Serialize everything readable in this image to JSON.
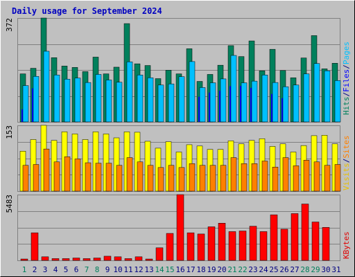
{
  "title": "Daily usage for September 2024",
  "chart_data": [
    {
      "type": "bar",
      "name": "hits-files-pages",
      "categories": [
        "1",
        "2",
        "3",
        "4",
        "5",
        "6",
        "7",
        "8",
        "9",
        "10",
        "11",
        "12",
        "13",
        "14",
        "15",
        "16",
        "17",
        "18",
        "19",
        "20",
        "21",
        "22",
        "23",
        "24",
        "25",
        "26",
        "27",
        "28",
        "29",
        "30",
        "31"
      ],
      "y_max_label": "372",
      "ylim": [
        0,
        372
      ],
      "legend": [
        {
          "text": "Hits",
          "color": "#00805c"
        },
        {
          "text": "/",
          "color": "#000080"
        },
        {
          "text": "Files",
          "color": "#0000ff"
        },
        {
          "text": "/",
          "color": "#000080"
        },
        {
          "text": "Pages",
          "color": "#00c0ff"
        }
      ],
      "series": [
        {
          "name": "Hits",
          "color": "#00805c",
          "values": [
            172,
            192,
            372,
            230,
            200,
            195,
            180,
            232,
            172,
            196,
            352,
            208,
            202,
            155,
            185,
            172,
            262,
            145,
            170,
            203,
            273,
            234,
            290,
            183,
            260,
            184,
            158,
            229,
            309,
            190,
            210
          ]
        },
        {
          "name": "Files",
          "color": "#0000ff",
          "values": [
            45,
            120,
            0,
            0,
            0,
            0,
            0,
            0,
            0,
            0,
            0,
            0,
            0,
            0,
            0,
            0,
            0,
            90,
            105,
            112,
            128,
            129,
            122,
            0,
            100,
            85,
            0,
            0,
            0,
            0,
            0
          ]
        },
        {
          "name": "Pages",
          "color": "#00c0ff",
          "values": [
            130,
            163,
            253,
            168,
            153,
            157,
            141,
            170,
            150,
            142,
            215,
            168,
            158,
            132,
            136,
            162,
            216,
            123,
            140,
            154,
            238,
            140,
            146,
            168,
            141,
            126,
            132,
            172,
            209,
            183,
            148
          ]
        }
      ]
    },
    {
      "type": "bar",
      "name": "visits-sites",
      "categories": [
        "1",
        "2",
        "3",
        "4",
        "5",
        "6",
        "7",
        "8",
        "9",
        "10",
        "11",
        "12",
        "13",
        "14",
        "15",
        "16",
        "17",
        "18",
        "19",
        "20",
        "21",
        "22",
        "23",
        "24",
        "25",
        "26",
        "27",
        "28",
        "29",
        "30",
        "31"
      ],
      "y_max_label": "153",
      "ylim": [
        0,
        153
      ],
      "legend": [
        {
          "text": "Visits",
          "color": "#e8c000"
        },
        {
          "text": "/",
          "color": "#000080"
        },
        {
          "text": "Sites",
          "color": "#ff8000"
        }
      ],
      "series": [
        {
          "name": "Visits",
          "color": "#ffff00",
          "values": [
            93,
            120,
            153,
            118,
            138,
            133,
            120,
            138,
            133,
            124,
            138,
            137,
            116,
            100,
            115,
            91,
            108,
            105,
            97,
            97,
            117,
            110,
            118,
            122,
            104,
            110,
            91,
            106,
            129,
            130,
            110
          ]
        },
        {
          "name": "Sites",
          "color": "#ff8000",
          "values": [
            60,
            62,
            98,
            68,
            80,
            75,
            66,
            65,
            65,
            60,
            78,
            68,
            60,
            55,
            60,
            55,
            64,
            60,
            60,
            60,
            78,
            64,
            64,
            70,
            56,
            78,
            59,
            72,
            68,
            60,
            62
          ]
        }
      ]
    },
    {
      "type": "bar",
      "name": "kbytes",
      "categories": [
        "1",
        "2",
        "3",
        "4",
        "5",
        "6",
        "7",
        "8",
        "9",
        "10",
        "11",
        "12",
        "13",
        "14",
        "15",
        "16",
        "17",
        "18",
        "19",
        "20",
        "21",
        "22",
        "23",
        "24",
        "25",
        "26",
        "27",
        "28",
        "29",
        "30",
        "31"
      ],
      "y_max_label": "5483",
      "ylim": [
        0,
        5483
      ],
      "legend": [
        {
          "text": "KBytes",
          "color": "#e00000"
        }
      ],
      "series": [
        {
          "name": "KBytes",
          "color": "#ff0000",
          "values": [
            50,
            2300,
            300,
            150,
            150,
            200,
            150,
            200,
            350,
            300,
            150,
            300,
            100,
            1050,
            2250,
            5483,
            2300,
            2200,
            2800,
            3100,
            2400,
            2450,
            2850,
            2400,
            3800,
            2600,
            3900,
            4700,
            3200,
            2750,
            0
          ]
        }
      ]
    }
  ],
  "weekend_days": [
    "1",
    "7",
    "8",
    "14",
    "15",
    "21",
    "22",
    "28",
    "29"
  ],
  "colors": {
    "background": "#c0c0c0",
    "title": "#0000c0",
    "grid": "#808080",
    "axis_text": "#000080",
    "weekend_text": "#00805c",
    "weekday_text": "#000080",
    "bar_outline": "#000000"
  }
}
